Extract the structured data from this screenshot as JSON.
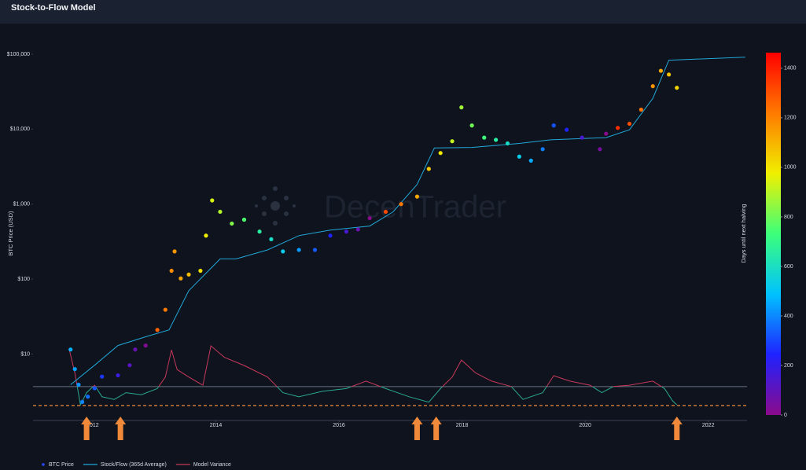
{
  "chart_data": {
    "type": "scatter",
    "title": "Stock-to-Flow Model",
    "y_label": "BTC Price (USD)",
    "watermark": "DecenTrader",
    "log_y": true,
    "xlim": [
      2011.03,
      2022.63
    ],
    "xticks": [
      2012,
      2014,
      2016,
      2018,
      2020,
      2022
    ],
    "ylim": [
      1.3,
      124000
    ],
    "yticks": [
      {
        "value": 10,
        "label": "$10"
      },
      {
        "value": 100,
        "label": "$100"
      },
      {
        "value": 1000,
        "label": "$1,000"
      },
      {
        "value": 10000,
        "label": "$10,000"
      },
      {
        "value": 100000,
        "label": "$100,000"
      }
    ],
    "y2lim": [
      -0.5,
      5
    ],
    "legend": "bottom-left",
    "series": [
      {
        "name": "BTC Price",
        "type": "scatter",
        "color": "#2b46ff",
        "x": [
          2011.64,
          2011.71,
          2011.77,
          2011.83,
          2011.92,
          2012.03,
          2012.15,
          2012.41,
          2012.6,
          2012.69,
          2012.86,
          2013.05,
          2013.18,
          2013.28,
          2013.33,
          2013.43,
          2013.56,
          2013.75,
          2013.84,
          2013.94,
          2014.07,
          2014.26,
          2014.46,
          2014.71,
          2014.9,
          2015.09,
          2015.35,
          2015.61,
          2015.86,
          2016.12,
          2016.31,
          2016.5,
          2016.76,
          2017.01,
          2017.27,
          2017.46,
          2017.65,
          2017.84,
          2017.99,
          2018.16,
          2018.36,
          2018.55,
          2018.74,
          2018.93,
          2019.12,
          2019.31,
          2019.49,
          2019.7,
          2019.95,
          2020.24,
          2020.34,
          2020.53,
          2020.72,
          2020.91,
          2021.1,
          2021.23,
          2021.36,
          2021.49
        ],
        "values": [
          11.5,
          6.3,
          3.9,
          2.3,
          2.7,
          3.5,
          5.0,
          5.2,
          7.1,
          11.5,
          13,
          21,
          39,
          129,
          234,
          102,
          115,
          129,
          380,
          1120,
          790,
          550,
          620,
          430,
          340,
          234,
          245,
          245,
          380,
          430,
          460,
          650,
          790,
          1000,
          1260,
          2950,
          4800,
          6900,
          19500,
          11200,
          7700,
          7200,
          6450,
          4300,
          3800,
          5400,
          11200,
          9800,
          7700,
          5400,
          8700,
          10400,
          11800,
          18200,
          37400,
          60000,
          53500,
          35600
        ],
        "color_values": [
          464,
          438,
          416,
          394,
          361,
          321,
          277,
          183,
          113,
          80,
          18,
          1267,
          1219,
          1183,
          1164,
          1128,
          1080,
          1011,
          978,
          942,
          894,
          825,
          752,
          661,
          591,
          522,
          427,
          332,
          241,
          146,
          77,
          7,
          1314,
          1223,
          1128,
          1059,
          989,
          920,
          865,
          803,
          730,
          658,
          591,
          522,
          453,
          383,
          318,
          241,
          150,
          44,
          7,
          1376,
          1307,
          1237,
          1168,
          1121,
          1073,
          1026
        ]
      },
      {
        "name": "Stock/Flow (365d Average)",
        "type": "line",
        "color": "#22a7d8",
        "x": [
          2011.64,
          2012.03,
          2012.41,
          2012.86,
          2013.24,
          2013.56,
          2013.88,
          2014.07,
          2014.33,
          2014.84,
          2015.35,
          2015.86,
          2016.5,
          2016.88,
          2017.27,
          2017.55,
          2018.16,
          2018.93,
          2019.44,
          2020.34,
          2020.72,
          2021.1,
          2021.36,
          2022.6
        ],
        "values": [
          3.9,
          7.1,
          13,
          17,
          21,
          70,
          129,
          186,
          186,
          245,
          380,
          450,
          510,
          790,
          1830,
          5600,
          5700,
          6450,
          7200,
          7700,
          9800,
          25700,
          83000,
          91000
        ]
      },
      {
        "name": "Model Variance",
        "type": "line",
        "axis": "y2",
        "color": "#c8385a",
        "color_below": "#2aa890",
        "x": [
          2011.62,
          2011.71,
          2011.8,
          2011.9,
          2012.03,
          2012.15,
          2012.35,
          2012.54,
          2012.79,
          2013.05,
          2013.18,
          2013.28,
          2013.37,
          2013.56,
          2013.79,
          2013.92,
          2014.14,
          2014.46,
          2014.84,
          2015.09,
          2015.35,
          2015.73,
          2016.12,
          2016.44,
          2016.76,
          2017.14,
          2017.46,
          2017.65,
          2017.84,
          2017.99,
          2018.22,
          2018.48,
          2018.8,
          2018.99,
          2019.31,
          2019.49,
          2019.75,
          2020.08,
          2020.27,
          2020.46,
          2020.72,
          2021.1,
          2021.29,
          2021.42,
          2021.49
        ],
        "values": [
          0.54,
          0.2,
          -0.27,
          -0.09,
          0.02,
          -0.15,
          -0.19,
          -0.09,
          -0.12,
          -0.03,
          0.14,
          0.54,
          0.25,
          0.14,
          0.02,
          0.6,
          0.43,
          0.31,
          0.14,
          -0.09,
          -0.15,
          -0.07,
          -0.03,
          0.08,
          -0.03,
          -0.15,
          -0.23,
          -0.03,
          0.14,
          0.39,
          0.2,
          0.08,
          0.0,
          -0.19,
          -0.09,
          0.16,
          0.08,
          0.02,
          -0.09,
          0.0,
          0.02,
          0.08,
          -0.03,
          -0.21,
          -0.27
        ]
      }
    ],
    "reference_lines": [
      {
        "value": 0,
        "color": "#6b7383",
        "dash": false
      },
      {
        "value": -0.28,
        "color": "#f08a3c",
        "dash": true
      }
    ],
    "arrows": {
      "color": "#f0893a",
      "x": [
        2011.9,
        2012.45,
        2017.27,
        2017.58,
        2021.49
      ]
    },
    "colorbar": {
      "title": "Days until next halving",
      "lim": [
        0,
        1463
      ],
      "ticks": [
        0,
        200,
        400,
        600,
        800,
        1000,
        1200,
        1400
      ],
      "colors": [
        "#8b0a8b",
        "#1f22ff",
        "#00c2ff",
        "#3cff7a",
        "#f0f000",
        "#ff7a00",
        "#ff0000"
      ]
    }
  }
}
